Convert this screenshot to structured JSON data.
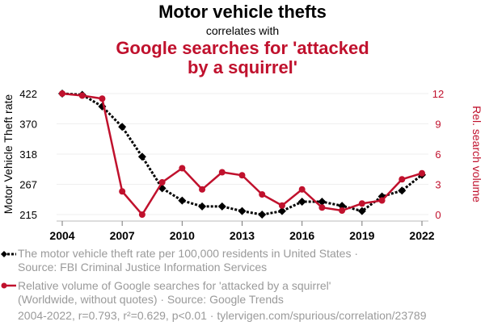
{
  "header": {
    "title": "Motor vehicle thefts",
    "subtitle": "correlates with",
    "title2_line1": "Google searches for 'attacked",
    "title2_line2": "by a squirrel'"
  },
  "colors": {
    "series1": "#000000",
    "series2": "#c0112d",
    "grid": "#efefef",
    "muted": "#9a9a9a"
  },
  "legend": {
    "series1_line1": "The motor vehicle theft rate per 100,000 residents in United States ·",
    "series1_line2": "Source: FBI Criminal Justice Information Services",
    "series2_line1": "Relative volume of Google searches for 'attacked by a squirrel'",
    "series2_line2": "(Worldwide, without quotes) · Source: Google Trends"
  },
  "footer": "2004-2022, r=0.793, r²=0.629, p<0.01 · tylervigen.com/spurious/correlation/23789",
  "chart_data": {
    "type": "line",
    "title": "Motor vehicle thefts correlates with Google searches for 'attacked by a squirrel'",
    "xlabel": "",
    "ylabel": "Motor Vehicle Theft rate",
    "y2label": "Rel. search volume",
    "x": [
      2004,
      2005,
      2006,
      2007,
      2008,
      2009,
      2010,
      2011,
      2012,
      2013,
      2014,
      2015,
      2016,
      2017,
      2018,
      2019,
      2020,
      2021,
      2022
    ],
    "xticks": [
      "2004",
      "2007",
      "2010",
      "2013",
      "2016",
      "2019",
      "2022"
    ],
    "yticks": [
      "422",
      "370",
      "318",
      "267",
      "215"
    ],
    "y2ticks": [
      "12",
      "9",
      "6",
      "3",
      "0"
    ],
    "ylim": [
      215,
      422
    ],
    "y2lim": [
      0,
      12
    ],
    "grid": true,
    "legend_position": "bottom",
    "series": [
      {
        "name": "The motor vehicle theft rate per 100,000 residents in United States",
        "axis": "left",
        "style": "dotted-diamond",
        "values": [
          422,
          420,
          400,
          365,
          314,
          260,
          239,
          229,
          229,
          221,
          215,
          221,
          237,
          237,
          230,
          221,
          246,
          256,
          283
        ]
      },
      {
        "name": "Relative volume of Google searches for 'attacked by a squirrel'",
        "axis": "right",
        "style": "solid-circle",
        "values": [
          12,
          11.8,
          11.5,
          2.3,
          0,
          3.2,
          4.6,
          2.5,
          4.2,
          3.9,
          2.0,
          0.9,
          2.5,
          0.7,
          0.4,
          1.1,
          1.4,
          3.5,
          4.1
        ]
      }
    ]
  }
}
